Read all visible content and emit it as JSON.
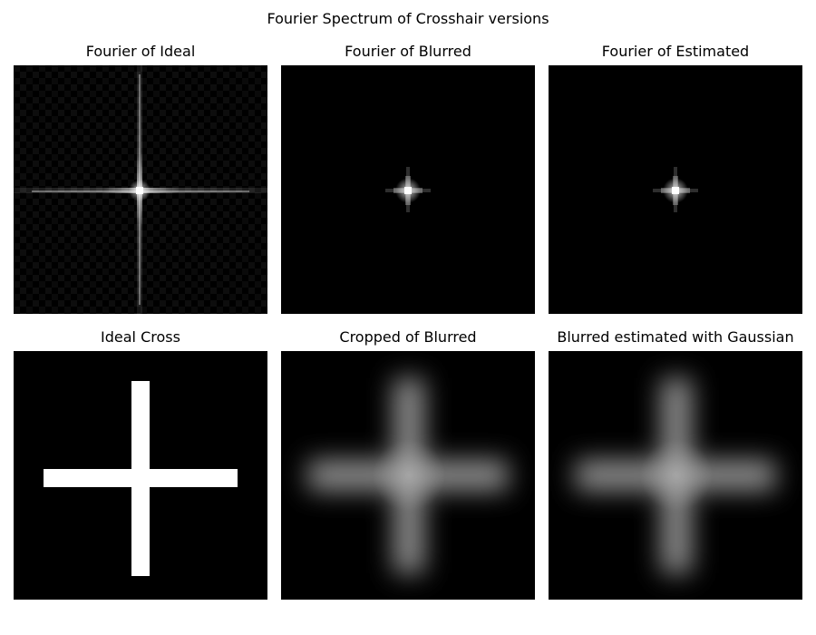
{
  "figure": {
    "title": "Fourier Spectrum of Crosshair versions"
  },
  "panels": [
    {
      "id": "fourier-ideal",
      "title": "Fourier of Ideal",
      "kind": "spectrum-broad"
    },
    {
      "id": "fourier-blurred",
      "title": "Fourier of Blurred",
      "kind": "spectrum-narrow"
    },
    {
      "id": "fourier-estimated",
      "title": "Fourier of Estimated",
      "kind": "spectrum-narrow"
    },
    {
      "id": "ideal-cross",
      "title": "Ideal Cross",
      "kind": "sharp-cross"
    },
    {
      "id": "cropped-blurred",
      "title": "Cropped of Blurred",
      "kind": "blurred-cross"
    },
    {
      "id": "blurred-estimated",
      "title": "Blurred estimated with Gaussian",
      "kind": "blurred-cross"
    }
  ],
  "colors": {
    "background": "#ffffff",
    "image_background": "#000000",
    "foreground": "#ffffff"
  }
}
